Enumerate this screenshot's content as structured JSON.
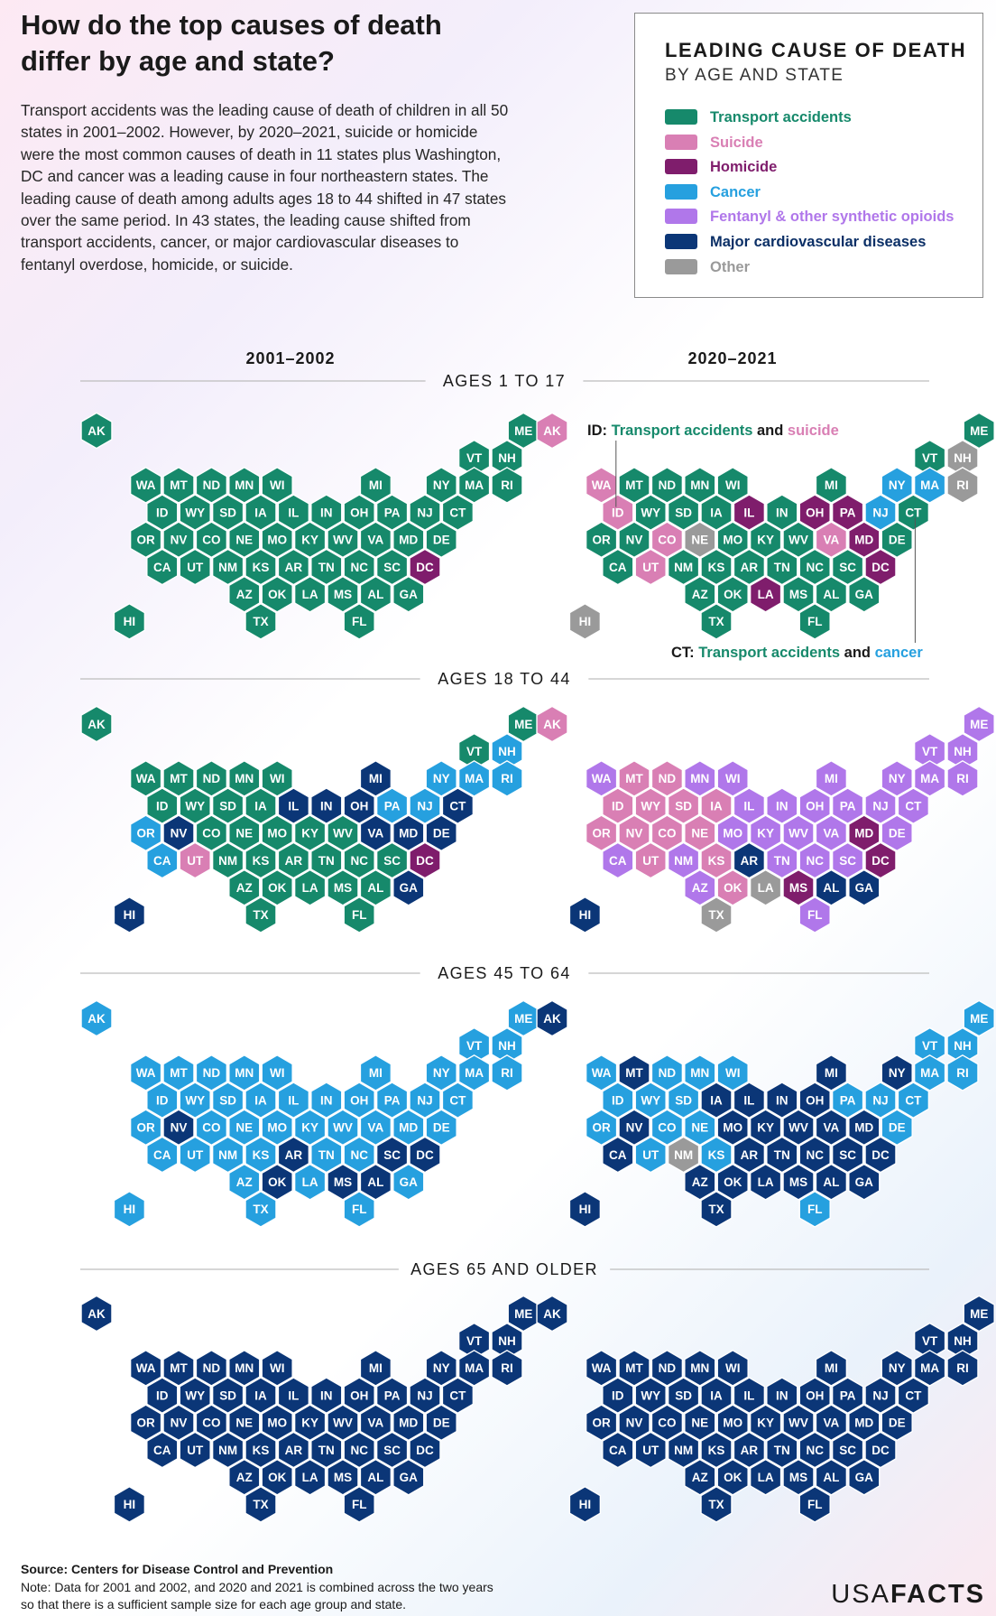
{
  "title": "How do the top causes of death differ by age and state?",
  "intro": "Transport accidents was the leading cause of death  of children in all 50 states in 2001–2002. However, by 2020–2021, suicide or homicide were the most common causes of death in 11 states plus Washington, DC and cancer was a leading cause in four northeastern states. The leading cause of death among adults ages 18 to 44 shifted in 47 states over the same period. In 43 states, the leading cause shifted from transport accidents, cancer, or major cardiovascular diseases to fentanyl overdose, homicide, or suicide.",
  "legend": {
    "title": "LEADING CAUSE OF DEATH",
    "subtitle": "BY AGE AND STATE",
    "items": [
      {
        "key": "T",
        "label": "Transport accidents",
        "color": "#16896b"
      },
      {
        "key": "S",
        "label": "Suicide",
        "color": "#d97fb4"
      },
      {
        "key": "H",
        "label": "Homicide",
        "color": "#7f1d6c"
      },
      {
        "key": "C",
        "label": "Cancer",
        "color": "#26a0df"
      },
      {
        "key": "F",
        "label": "Fentanyl & other synthetic opioids",
        "color": "#b077ea"
      },
      {
        "key": "M",
        "label": "Major cardiovascular diseases",
        "color": "#0b3677"
      },
      {
        "key": "O",
        "label": "Other",
        "color": "#9a9a9a"
      }
    ]
  },
  "chart_data": {
    "type": "hex tile map",
    "periods": [
      "2001–2002",
      "2020–2021"
    ],
    "panels": [
      {
        "age_group": "AGES 1 TO 17",
        "2001–2002": {
          "AK": "T",
          "ME": "T",
          "VT": "T",
          "NH": "T",
          "WA": "T",
          "MT": "T",
          "ND": "T",
          "MN": "T",
          "WI": "T",
          "MI": "T",
          "NY": "T",
          "MA": "T",
          "RI": "T",
          "ID": "T",
          "WY": "T",
          "SD": "T",
          "IA": "T",
          "IL": "T",
          "IN": "T",
          "OH": "T",
          "PA": "T",
          "NJ": "T",
          "CT": "T",
          "OR": "T",
          "NV": "T",
          "CO": "T",
          "NE": "T",
          "MO": "T",
          "KY": "T",
          "WV": "T",
          "VA": "T",
          "MD": "T",
          "DE": "T",
          "CA": "T",
          "UT": "T",
          "NM": "T",
          "KS": "T",
          "AR": "T",
          "TN": "T",
          "NC": "T",
          "SC": "T",
          "DC": "H",
          "AZ": "T",
          "OK": "T",
          "LA": "T",
          "MS": "T",
          "AL": "T",
          "GA": "T",
          "HI": "T",
          "TX": "T",
          "FL": "T"
        },
        "2020–2021": {
          "AK": "S",
          "ME": "T",
          "VT": "T",
          "NH": "O",
          "WA": "S",
          "MT": "T",
          "ND": "T",
          "MN": "T",
          "WI": "T",
          "MI": "T",
          "NY": "C",
          "MA": "C",
          "RI": "O",
          "ID": "S",
          "WY": "T",
          "SD": "T",
          "IA": "T",
          "IL": "H",
          "IN": "T",
          "OH": "H",
          "PA": "H",
          "NJ": "C",
          "CT": "T",
          "OR": "T",
          "NV": "T",
          "CO": "S",
          "NE": "O",
          "MO": "T",
          "KY": "T",
          "WV": "T",
          "VA": "S",
          "MD": "H",
          "DE": "T",
          "CA": "T",
          "UT": "S",
          "NM": "T",
          "KS": "T",
          "AR": "T",
          "TN": "T",
          "NC": "T",
          "SC": "T",
          "DC": "H",
          "AZ": "T",
          "OK": "T",
          "LA": "H",
          "MS": "T",
          "AL": "T",
          "GA": "T",
          "HI": "O",
          "TX": "T",
          "FL": "T"
        }
      },
      {
        "age_group": "AGES 18 TO 44",
        "2001–2002": {
          "AK": "T",
          "ME": "T",
          "VT": "T",
          "NH": "C",
          "WA": "T",
          "MT": "T",
          "ND": "T",
          "MN": "T",
          "WI": "T",
          "MI": "M",
          "NY": "C",
          "MA": "C",
          "RI": "C",
          "ID": "T",
          "WY": "T",
          "SD": "T",
          "IA": "T",
          "IL": "M",
          "IN": "M",
          "OH": "M",
          "PA": "C",
          "NJ": "C",
          "CT": "M",
          "OR": "C",
          "NV": "M",
          "CO": "T",
          "NE": "T",
          "MO": "T",
          "KY": "T",
          "WV": "T",
          "VA": "M",
          "MD": "M",
          "DE": "M",
          "CA": "C",
          "UT": "S",
          "NM": "T",
          "KS": "T",
          "AR": "T",
          "TN": "T",
          "NC": "T",
          "SC": "T",
          "DC": "H",
          "AZ": "T",
          "OK": "T",
          "LA": "T",
          "MS": "T",
          "AL": "T",
          "GA": "M",
          "HI": "M",
          "TX": "T",
          "FL": "T"
        },
        "2020–2021": {
          "AK": "S",
          "ME": "F",
          "VT": "F",
          "NH": "F",
          "WA": "F",
          "MT": "S",
          "ND": "S",
          "MN": "F",
          "WI": "F",
          "MI": "F",
          "NY": "F",
          "MA": "F",
          "RI": "F",
          "ID": "S",
          "WY": "S",
          "SD": "S",
          "IA": "S",
          "IL": "F",
          "IN": "F",
          "OH": "F",
          "PA": "F",
          "NJ": "F",
          "CT": "F",
          "OR": "S",
          "NV": "S",
          "CO": "S",
          "NE": "S",
          "MO": "F",
          "KY": "F",
          "WV": "F",
          "VA": "F",
          "MD": "H",
          "DE": "F",
          "CA": "F",
          "UT": "S",
          "NM": "F",
          "KS": "S",
          "AR": "M",
          "TN": "F",
          "NC": "F",
          "SC": "F",
          "DC": "H",
          "AZ": "F",
          "OK": "S",
          "LA": "O",
          "MS": "H",
          "AL": "M",
          "GA": "M",
          "HI": "M",
          "TX": "O",
          "FL": "F"
        }
      },
      {
        "age_group": "AGES 45 TO 64",
        "2001–2002": {
          "AK": "C",
          "ME": "C",
          "VT": "C",
          "NH": "C",
          "WA": "C",
          "MT": "C",
          "ND": "C",
          "MN": "C",
          "WI": "C",
          "MI": "C",
          "NY": "C",
          "MA": "C",
          "RI": "C",
          "ID": "C",
          "WY": "C",
          "SD": "C",
          "IA": "C",
          "IL": "C",
          "IN": "C",
          "OH": "C",
          "PA": "C",
          "NJ": "C",
          "CT": "C",
          "OR": "C",
          "NV": "M",
          "CO": "C",
          "NE": "C",
          "MO": "C",
          "KY": "C",
          "WV": "C",
          "VA": "C",
          "MD": "C",
          "DE": "C",
          "CA": "C",
          "UT": "C",
          "NM": "C",
          "KS": "C",
          "AR": "M",
          "TN": "C",
          "NC": "C",
          "SC": "M",
          "DC": "M",
          "AZ": "C",
          "OK": "M",
          "LA": "C",
          "MS": "M",
          "AL": "M",
          "GA": "C",
          "HI": "C",
          "TX": "C",
          "FL": "C"
        },
        "2020–2021": {
          "AK": "M",
          "ME": "C",
          "VT": "C",
          "NH": "C",
          "WA": "C",
          "MT": "M",
          "ND": "C",
          "MN": "C",
          "WI": "C",
          "MI": "M",
          "NY": "M",
          "MA": "C",
          "RI": "C",
          "ID": "C",
          "WY": "C",
          "SD": "C",
          "IA": "M",
          "IL": "M",
          "IN": "M",
          "OH": "M",
          "PA": "C",
          "NJ": "C",
          "CT": "C",
          "OR": "C",
          "NV": "M",
          "CO": "C",
          "NE": "C",
          "MO": "M",
          "KY": "M",
          "WV": "M",
          "VA": "M",
          "MD": "M",
          "DE": "C",
          "CA": "M",
          "UT": "C",
          "NM": "O",
          "KS": "C",
          "AR": "M",
          "TN": "M",
          "NC": "M",
          "SC": "M",
          "DC": "M",
          "AZ": "M",
          "OK": "M",
          "LA": "M",
          "MS": "M",
          "AL": "M",
          "GA": "M",
          "HI": "M",
          "TX": "M",
          "FL": "C"
        }
      },
      {
        "age_group": "AGES 65 AND OLDER",
        "2001–2002": {
          "AK": "M",
          "ME": "M",
          "VT": "M",
          "NH": "M",
          "WA": "M",
          "MT": "M",
          "ND": "M",
          "MN": "M",
          "WI": "M",
          "MI": "M",
          "NY": "M",
          "MA": "M",
          "RI": "M",
          "ID": "M",
          "WY": "M",
          "SD": "M",
          "IA": "M",
          "IL": "M",
          "IN": "M",
          "OH": "M",
          "PA": "M",
          "NJ": "M",
          "CT": "M",
          "OR": "M",
          "NV": "M",
          "CO": "M",
          "NE": "M",
          "MO": "M",
          "KY": "M",
          "WV": "M",
          "VA": "M",
          "MD": "M",
          "DE": "M",
          "CA": "M",
          "UT": "M",
          "NM": "M",
          "KS": "M",
          "AR": "M",
          "TN": "M",
          "NC": "M",
          "SC": "M",
          "DC": "M",
          "AZ": "M",
          "OK": "M",
          "LA": "M",
          "MS": "M",
          "AL": "M",
          "GA": "M",
          "HI": "M",
          "TX": "M",
          "FL": "M"
        },
        "2020–2021": {
          "AK": "M",
          "ME": "M",
          "VT": "M",
          "NH": "M",
          "WA": "M",
          "MT": "M",
          "ND": "M",
          "MN": "M",
          "WI": "M",
          "MI": "M",
          "NY": "M",
          "MA": "M",
          "RI": "M",
          "ID": "M",
          "WY": "M",
          "SD": "M",
          "IA": "M",
          "IL": "M",
          "IN": "M",
          "OH": "M",
          "PA": "M",
          "NJ": "M",
          "CT": "M",
          "OR": "M",
          "NV": "M",
          "CO": "M",
          "NE": "M",
          "MO": "M",
          "KY": "M",
          "WV": "M",
          "VA": "M",
          "MD": "M",
          "DE": "M",
          "CA": "M",
          "UT": "M",
          "NM": "M",
          "KS": "M",
          "AR": "M",
          "TN": "M",
          "NC": "M",
          "SC": "M",
          "DC": "M",
          "AZ": "M",
          "OK": "M",
          "LA": "M",
          "MS": "M",
          "AL": "M",
          "GA": "M",
          "HI": "M",
          "TX": "M",
          "FL": "M"
        }
      }
    ],
    "annotations": [
      {
        "state": "ID",
        "parts": [
          {
            "text": "ID: ",
            "key": "label"
          },
          {
            "text": "Transport accidents",
            "key": "T"
          },
          {
            "text": " and ",
            "key": "label"
          },
          {
            "text": "suicide",
            "key": "S"
          }
        ]
      },
      {
        "state": "CT",
        "parts": [
          {
            "text": "CT: ",
            "key": "label"
          },
          {
            "text": "Transport accidents",
            "key": "T"
          },
          {
            "text": " and ",
            "key": "label"
          },
          {
            "text": "cancer",
            "key": "C"
          }
        ]
      }
    ]
  },
  "source": "Source: Centers for Disease Control and Prevention",
  "note": "Note: Data for 2001 and 2002, and 2020 and 2021 is combined across the two years so that there is a sufficient sample size for each age group and state.",
  "brand": {
    "part1": "USA",
    "part2": "FACTS"
  }
}
